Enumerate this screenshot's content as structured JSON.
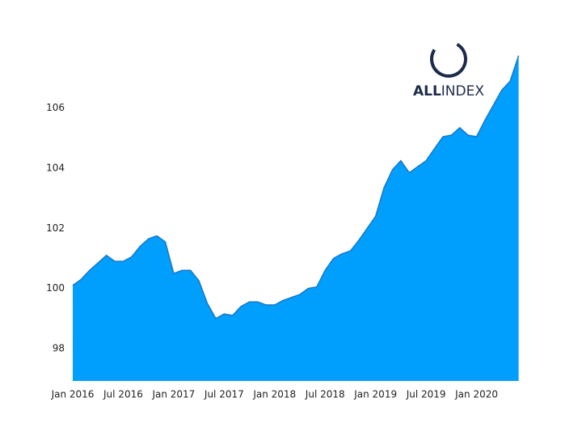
{
  "chart_data": {
    "type": "area",
    "logo": {
      "bold": "ALL",
      "light": "INDEX"
    },
    "x": [
      "2016-01",
      "2016-02",
      "2016-03",
      "2016-04",
      "2016-05",
      "2016-06",
      "2016-07",
      "2016-08",
      "2016-09",
      "2016-10",
      "2016-11",
      "2016-12",
      "2017-01",
      "2017-02",
      "2017-03",
      "2017-04",
      "2017-05",
      "2017-06",
      "2017-07",
      "2017-08",
      "2017-09",
      "2017-10",
      "2017-11",
      "2017-12",
      "2018-01",
      "2018-02",
      "2018-03",
      "2018-04",
      "2018-05",
      "2018-06",
      "2018-07",
      "2018-08",
      "2018-09",
      "2018-10",
      "2018-11",
      "2018-12",
      "2019-01",
      "2019-02",
      "2019-03",
      "2019-04",
      "2019-05",
      "2019-06",
      "2019-07",
      "2019-08",
      "2019-09",
      "2019-10",
      "2019-11",
      "2019-12",
      "2020-01",
      "2020-02",
      "2020-03",
      "2020-04",
      "2020-05",
      "2020-06"
    ],
    "values": [
      100.1,
      100.3,
      100.6,
      100.85,
      101.1,
      100.9,
      100.9,
      101.05,
      101.4,
      101.65,
      101.75,
      101.55,
      100.5,
      100.6,
      100.6,
      100.25,
      99.5,
      99.0,
      99.15,
      99.1,
      99.4,
      99.55,
      99.55,
      99.45,
      99.45,
      99.6,
      99.7,
      99.8,
      100.0,
      100.05,
      100.6,
      101.0,
      101.15,
      101.25,
      101.6,
      102.0,
      102.4,
      103.35,
      103.95,
      104.25,
      103.85,
      104.05,
      104.25,
      104.65,
      105.05,
      105.1,
      105.35,
      105.1,
      105.05,
      105.6,
      106.1,
      106.6,
      106.9,
      107.75
    ],
    "color": "#009ffd",
    "line_color": "#1877c9",
    "xlim": [
      "2016-01",
      "2020-07"
    ],
    "xticks": [
      {
        "value": "2016-01",
        "label": "Jan 2016"
      },
      {
        "value": "2016-07",
        "label": "Jul 2016"
      },
      {
        "value": "2017-01",
        "label": "Jan 2017"
      },
      {
        "value": "2017-07",
        "label": "Jul 2017"
      },
      {
        "value": "2018-01",
        "label": "Jan 2018"
      },
      {
        "value": "2018-07",
        "label": "Jul 2018"
      },
      {
        "value": "2019-01",
        "label": "Jan 2019"
      },
      {
        "value": "2019-07",
        "label": "Jul 2019"
      },
      {
        "value": "2020-01",
        "label": "Jan 2020"
      }
    ],
    "ylim": [
      96.92,
      108.2
    ],
    "yticks": [
      98,
      100,
      102,
      104,
      106
    ],
    "grid": false
  }
}
